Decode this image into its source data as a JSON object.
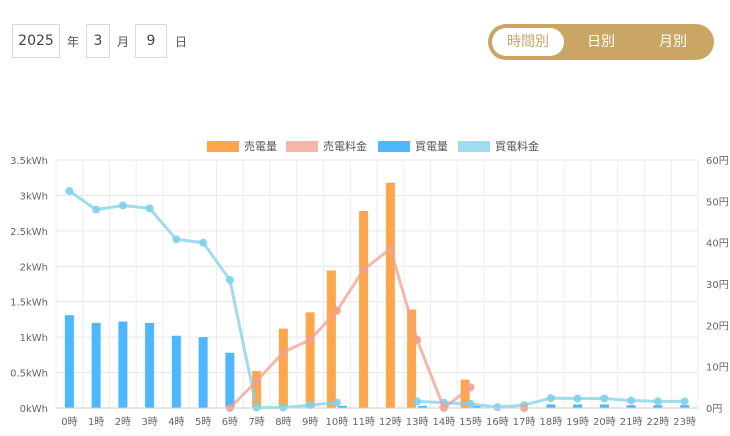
{
  "date": {
    "year": "2025",
    "year_label": "年",
    "month": "3",
    "month_label": "月",
    "day": "9",
    "day_label": "日"
  },
  "view_tabs": [
    {
      "label": "時間別",
      "active": true
    },
    {
      "label": "日別",
      "active": false
    },
    {
      "label": "月別",
      "active": false
    }
  ],
  "colors": {
    "sell_amount": "#ffa64d",
    "sell_price": "#f2a08b",
    "buy_amount": "#4db8ff",
    "buy_price": "#7fd0ea",
    "accent": "#c9a664"
  },
  "chart_data": {
    "type": "bar",
    "categories": [
      "0時",
      "1時",
      "2時",
      "3時",
      "4時",
      "5時",
      "6時",
      "7時",
      "8時",
      "9時",
      "10時",
      "11時",
      "12時",
      "13時",
      "14時",
      "15時",
      "16時",
      "17時",
      "18時",
      "19時",
      "20時",
      "21時",
      "22時",
      "23時"
    ],
    "y_left": {
      "ticks": [
        "0kWh",
        "0.5kWh",
        "1kWh",
        "1.5kWh",
        "2kWh",
        "2.5kWh",
        "3kWh",
        "3.5kWh"
      ],
      "range": [
        0,
        3.5
      ]
    },
    "y_right": {
      "ticks": [
        "0円",
        "10円",
        "20円",
        "30円",
        "40円",
        "50円",
        "60円"
      ],
      "range": [
        0,
        60
      ]
    },
    "legend": [
      "売電量",
      "売電料金",
      "買電量",
      "買電料金"
    ],
    "legend_position": "top",
    "series": [
      {
        "name": "売電量",
        "kind": "bar",
        "axis": "left",
        "values": [
          0,
          0,
          0,
          0,
          0,
          0,
          0,
          0.52,
          1.12,
          1.35,
          1.94,
          2.78,
          3.18,
          1.39,
          0,
          0.4,
          0,
          0,
          0,
          0,
          0,
          0,
          0,
          0
        ]
      },
      {
        "name": "買電量",
        "kind": "bar",
        "axis": "left",
        "values": [
          1.31,
          1.2,
          1.22,
          1.2,
          1.02,
          1.0,
          0.78,
          0,
          0,
          0,
          0.03,
          0,
          0,
          0.03,
          0.03,
          0.03,
          0,
          0,
          0.05,
          0.05,
          0.05,
          0.04,
          0.04,
          0.04
        ]
      },
      {
        "name": "売電料金",
        "kind": "line",
        "axis": "right",
        "values": [
          null,
          null,
          null,
          null,
          null,
          null,
          0,
          6.5,
          13.5,
          16.5,
          23.5,
          33.5,
          38.5,
          16.5,
          0,
          5,
          null,
          0,
          null,
          null,
          null,
          null,
          null,
          null
        ]
      },
      {
        "name": "買電料金",
        "kind": "line",
        "axis": "right",
        "values": [
          52.5,
          48,
          49,
          48.3,
          40.8,
          40,
          31,
          0.1,
          0.1,
          0.7,
          1.3,
          null,
          null,
          1.6,
          1.3,
          1.0,
          0.2,
          0.7,
          2.4,
          2.3,
          2.3,
          1.8,
          1.6,
          1.6
        ]
      }
    ]
  }
}
